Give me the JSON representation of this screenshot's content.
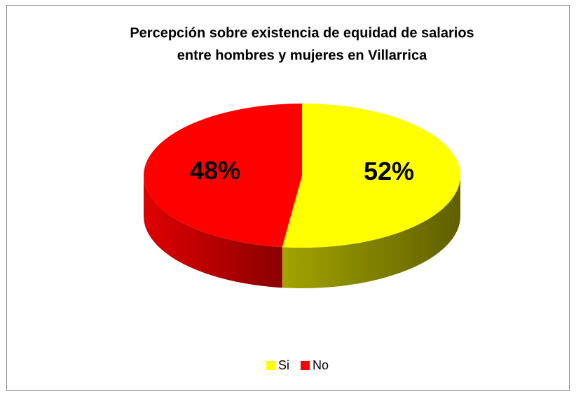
{
  "chart_data": {
    "type": "pie3d",
    "title": [
      "Percepción sobre existencia de equidad de salarios",
      "entre hombres y mujeres en Villarrica"
    ],
    "categories": [
      "Si",
      "No"
    ],
    "values": [
      52,
      48
    ],
    "value_labels": [
      "52%",
      "48%"
    ],
    "colors": [
      "#ffff00",
      "#ff0000"
    ],
    "legend": "bottom"
  }
}
